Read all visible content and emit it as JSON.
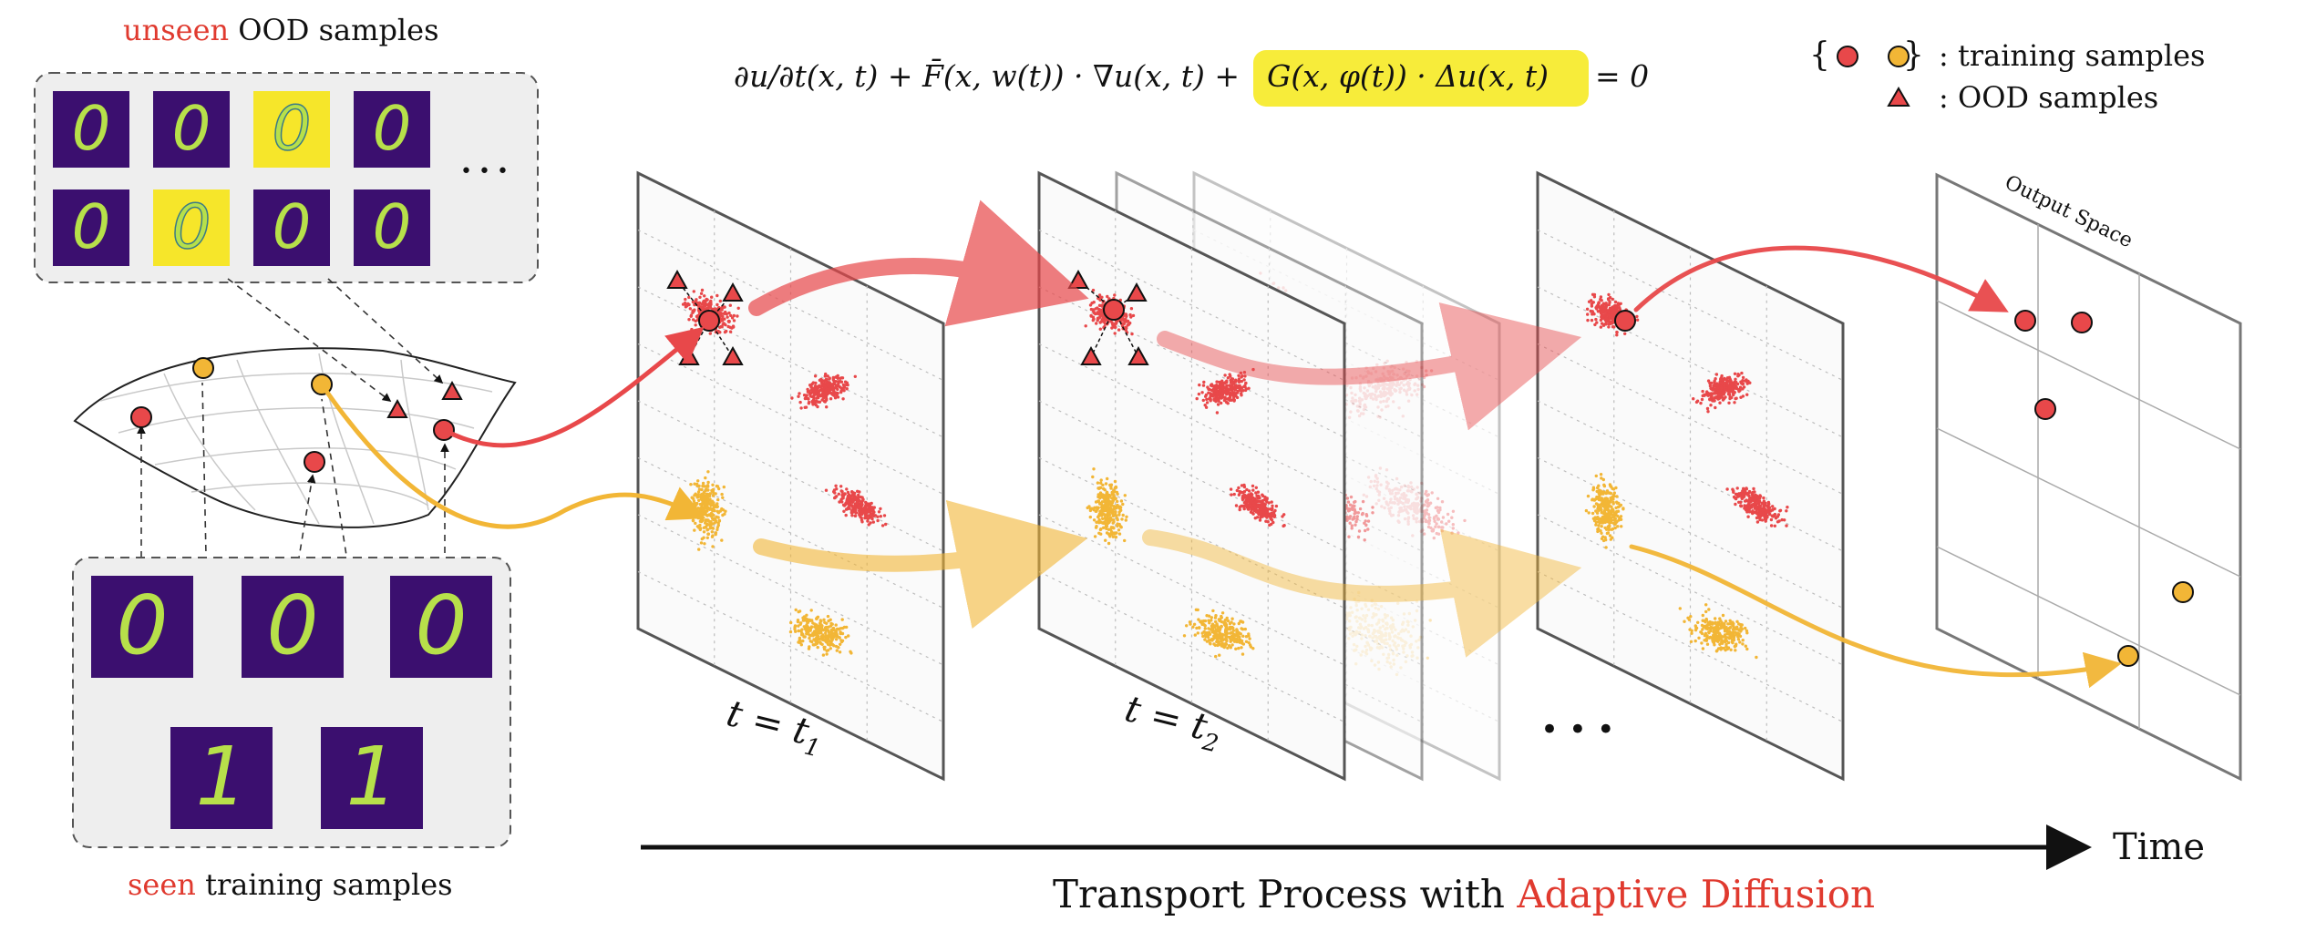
{
  "labels": {
    "unseen_word": "unseen",
    "unseen_rest": " OOD samples",
    "seen_word": "seen",
    "seen_rest": " training samples",
    "equation_main": "∂u/∂t(x, t) + F̄(x, w(t)) · ∇u(x, t) +",
    "equation_highlight": "G(x, φ(t)) · Δu(x, t)",
    "equation_tail": "= 0",
    "legend_braces": "{       }",
    "legend_training": ": training samples",
    "legend_ood": ": OOD samples",
    "output_space": "Output Space",
    "t1": "t = t",
    "t1_sub": "1",
    "t2": "t = t",
    "t2_sub": "2",
    "ellipsis_panels": "• • •",
    "ellipsis_thumbs": "• • •",
    "time_axis": "Time",
    "caption_lead": "Transport Process with ",
    "caption_highlight": "Adaptive Diffusion"
  },
  "thumbnails": {
    "unseen_digits": [
      "0",
      "0",
      "0",
      "0",
      "0",
      "0",
      "0",
      "0"
    ],
    "seen_digits": [
      "0",
      "0",
      "0",
      "1",
      "1"
    ]
  },
  "colors": {
    "red_sample": "#e8484a",
    "yellow_sample": "#f2b636",
    "digit_bg": "#3b0f6f",
    "digit_fg": "#b7e04a",
    "digit_bg_alt": "#f6e62a",
    "highlight": "#f7ec3a",
    "accent_text": "#e03a2f",
    "panel_box": "#eeeeee"
  }
}
